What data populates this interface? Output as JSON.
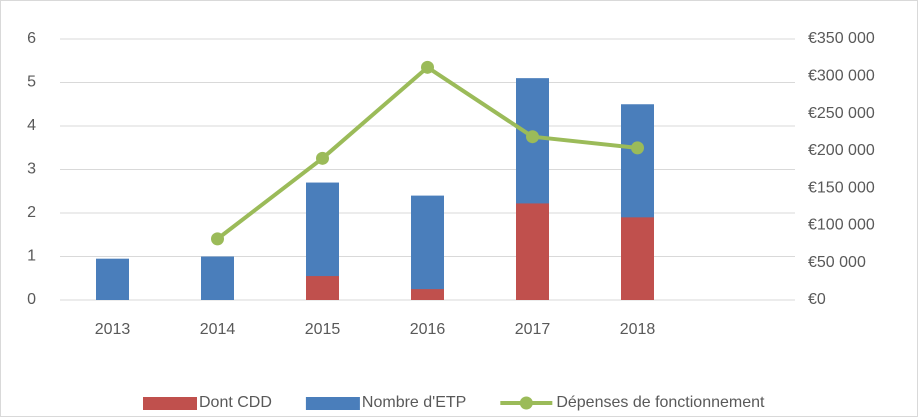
{
  "chart_data": {
    "type": "bar",
    "categories": [
      "2013",
      "2014",
      "2015",
      "2016",
      "2017",
      "2018",
      null
    ],
    "series": [
      {
        "name": "Nombre d'ETP",
        "color": "#4a7ebb",
        "type": "bar",
        "values": [
          0.95,
          1,
          2.7,
          2.4,
          5.1,
          4.5,
          null
        ]
      },
      {
        "name": "Dont CDD",
        "color": "#c0504d",
        "type": "bar",
        "values": [
          null,
          null,
          0.55,
          0.25,
          2.22,
          1.9,
          null
        ]
      },
      {
        "name": "Dépenses de fonctionnement",
        "color": "#9bbb59",
        "type": "line",
        "axis": "y2",
        "values": [
          null,
          82000,
          190000,
          312000,
          219000,
          204000,
          null
        ]
      }
    ],
    "legend_order": [
      1,
      0,
      2
    ],
    "ylim": [
      0,
      6
    ],
    "yticks": [
      0,
      1,
      2,
      3,
      4,
      5,
      6
    ],
    "y2lim": [
      0,
      350000
    ],
    "y2ticks": [
      {
        "value": 0,
        "label": "€0"
      },
      {
        "value": 50000,
        "label": "€50 000"
      },
      {
        "value": 100000,
        "label": "€100 000"
      },
      {
        "value": 150000,
        "label": "€150 000"
      },
      {
        "value": 200000,
        "label": "€200 000"
      },
      {
        "value": 250000,
        "label": "€250 000"
      },
      {
        "value": 300000,
        "label": "€300 000"
      },
      {
        "value": 350000,
        "label": "€350 000"
      }
    ],
    "grid": true,
    "legend": "bottom"
  }
}
